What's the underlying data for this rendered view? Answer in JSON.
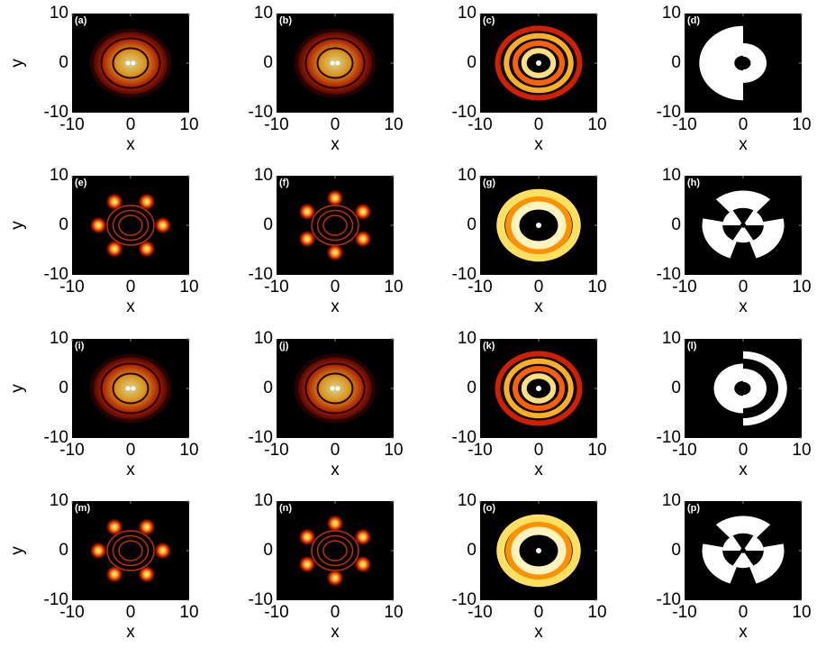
{
  "chart_data": [
    {
      "type": "heatmap",
      "panel_label": "(a)",
      "xlabel": "x",
      "ylabel": "y",
      "xlim": [
        -10,
        10
      ],
      "ylim": [
        -10,
        10
      ],
      "xticks": [
        -10,
        0,
        10
      ],
      "yticks": [
        -10,
        0,
        10
      ]
    },
    {
      "type": "heatmap",
      "panel_label": "(b)",
      "xlabel": "x",
      "xlim": [
        -10,
        10
      ],
      "ylim": [
        -10,
        10
      ],
      "xticks": [
        -10,
        0,
        10
      ],
      "yticks": [
        -10,
        0,
        10
      ]
    },
    {
      "type": "heatmap",
      "panel_label": "(c)",
      "xlabel": "x",
      "xlim": [
        -10,
        10
      ],
      "ylim": [
        -10,
        10
      ],
      "xticks": [
        -10,
        0,
        10
      ],
      "yticks": [
        -10,
        0,
        10
      ]
    },
    {
      "type": "phase",
      "panel_label": "(d)",
      "xlabel": "x",
      "xlim": [
        -10,
        10
      ],
      "ylim": [
        -10,
        10
      ],
      "xticks": [
        -10,
        0,
        10
      ],
      "yticks": [
        -10,
        0,
        10
      ]
    },
    {
      "type": "heatmap",
      "panel_label": "(e)",
      "xlabel": "x",
      "ylabel": "y",
      "xlim": [
        -10,
        10
      ],
      "ylim": [
        -10,
        10
      ],
      "xticks": [
        -10,
        0,
        10
      ],
      "yticks": [
        -10,
        0,
        10
      ]
    },
    {
      "type": "heatmap",
      "panel_label": "(f)",
      "xlabel": "x",
      "xlim": [
        -10,
        10
      ],
      "ylim": [
        -10,
        10
      ],
      "xticks": [
        -10,
        0,
        10
      ],
      "yticks": [
        -10,
        0,
        10
      ]
    },
    {
      "type": "heatmap",
      "panel_label": "(g)",
      "xlabel": "x",
      "xlim": [
        -10,
        10
      ],
      "ylim": [
        -10,
        10
      ],
      "xticks": [
        -10,
        0,
        10
      ],
      "yticks": [
        -10,
        0,
        10
      ]
    },
    {
      "type": "phase",
      "panel_label": "(h)",
      "xlabel": "x",
      "xlim": [
        -10,
        10
      ],
      "ylim": [
        -10,
        10
      ],
      "xticks": [
        -10,
        0,
        10
      ],
      "yticks": [
        -10,
        0,
        10
      ]
    },
    {
      "type": "heatmap",
      "panel_label": "(i)",
      "xlabel": "x",
      "ylabel": "y",
      "xlim": [
        -10,
        10
      ],
      "ylim": [
        -10,
        10
      ],
      "xticks": [
        -10,
        0,
        10
      ],
      "yticks": [
        -10,
        0,
        10
      ]
    },
    {
      "type": "heatmap",
      "panel_label": "(j)",
      "xlabel": "x",
      "xlim": [
        -10,
        10
      ],
      "ylim": [
        -10,
        10
      ],
      "xticks": [
        -10,
        0,
        10
      ],
      "yticks": [
        -10,
        0,
        10
      ]
    },
    {
      "type": "heatmap",
      "panel_label": "(k)",
      "xlabel": "x",
      "xlim": [
        -10,
        10
      ],
      "ylim": [
        -10,
        10
      ],
      "xticks": [
        -10,
        0,
        10
      ],
      "yticks": [
        -10,
        0,
        10
      ]
    },
    {
      "type": "phase",
      "panel_label": "(l)",
      "xlabel": "x",
      "xlim": [
        -10,
        10
      ],
      "ylim": [
        -10,
        10
      ],
      "xticks": [
        -10,
        0,
        10
      ],
      "yticks": [
        -10,
        0,
        10
      ]
    },
    {
      "type": "heatmap",
      "panel_label": "(m)",
      "xlabel": "x",
      "ylabel": "y",
      "xlim": [
        -10,
        10
      ],
      "ylim": [
        -10,
        10
      ],
      "xticks": [
        -10,
        0,
        10
      ],
      "yticks": [
        -10,
        0,
        10
      ]
    },
    {
      "type": "heatmap",
      "panel_label": "(n)",
      "xlabel": "x",
      "xlim": [
        -10,
        10
      ],
      "ylim": [
        -10,
        10
      ],
      "xticks": [
        -10,
        0,
        10
      ],
      "yticks": [
        -10,
        0,
        10
      ]
    },
    {
      "type": "heatmap",
      "panel_label": "(o)",
      "xlabel": "x",
      "xlim": [
        -10,
        10
      ],
      "ylim": [
        -10,
        10
      ],
      "xticks": [
        -10,
        0,
        10
      ],
      "yticks": [
        -10,
        0,
        10
      ]
    },
    {
      "type": "phase",
      "panel_label": "(p)",
      "xlabel": "x",
      "xlim": [
        -10,
        10
      ],
      "ylim": [
        -10,
        10
      ],
      "xticks": [
        -10,
        0,
        10
      ],
      "yticks": [
        -10,
        0,
        10
      ]
    }
  ]
}
